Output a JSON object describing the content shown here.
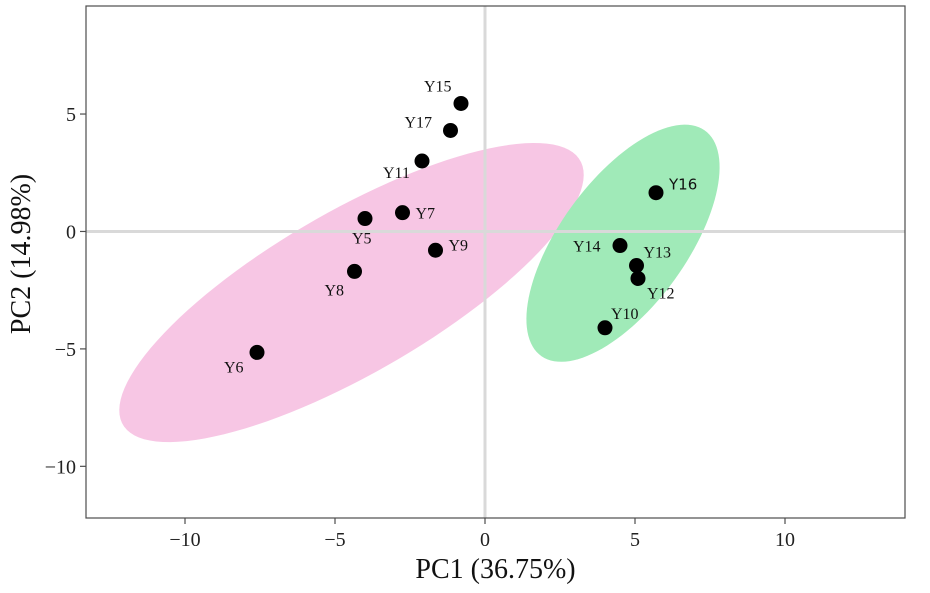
{
  "chart_data": {
    "type": "scatter",
    "title": "",
    "xlabel": "PC1 (36.75%)",
    "ylabel": "PC2 (14.98%)",
    "xlim": [
      -13.3,
      14
    ],
    "ylim": [
      -12.2,
      9.6
    ],
    "xticks": [
      -10,
      -5,
      0,
      5,
      10
    ],
    "xtick_labels": [
      "−10",
      "−5",
      "0",
      "5",
      "10"
    ],
    "yticks": [
      -10,
      -5,
      0,
      5
    ],
    "ytick_labels": [
      "−10",
      "−5",
      "0",
      "5"
    ],
    "zero_lines": true,
    "points": [
      {
        "label": "Y15",
        "x": -0.8,
        "y": 5.45,
        "group": "cluster-1"
      },
      {
        "label": "Y17",
        "x": -1.15,
        "y": 4.3,
        "group": "cluster-1"
      },
      {
        "label": "Y11",
        "x": -2.1,
        "y": 3.0,
        "group": "cluster-1"
      },
      {
        "label": "Y5",
        "x": -4.0,
        "y": 0.55,
        "group": "cluster-1"
      },
      {
        "label": "Y7",
        "x": -2.75,
        "y": 0.8,
        "group": "cluster-1"
      },
      {
        "label": "Y9",
        "x": -1.65,
        "y": -0.8,
        "group": "cluster-1"
      },
      {
        "label": "Y8",
        "x": -4.35,
        "y": -1.7,
        "group": "cluster-1"
      },
      {
        "label": "Y6",
        "x": -7.6,
        "y": -5.15,
        "group": "cluster-1"
      },
      {
        "label": "Y16",
        "x": 5.7,
        "y": 1.65,
        "group": "cluster-2"
      },
      {
        "label": "Y14",
        "x": 4.5,
        "y": -0.6,
        "group": "cluster-2"
      },
      {
        "label": "Y13",
        "x": 5.05,
        "y": -1.45,
        "group": "cluster-2"
      },
      {
        "label": "Y12",
        "x": 5.1,
        "y": -2.0,
        "group": "cluster-2"
      },
      {
        "label": "Y10",
        "x": 4.0,
        "y": -4.1,
        "group": "cluster-2"
      }
    ],
    "ellipses": [
      {
        "group": "cluster-1",
        "center": [
          -4.45,
          -2.6
        ],
        "semi_axes": [
          9.5,
          3.2
        ],
        "angle_deg": 38,
        "color": "#f7c6e4"
      },
      {
        "group": "cluster-2",
        "center": [
          4.6,
          -0.5
        ],
        "semi_axes": [
          5.55,
          2.25
        ],
        "angle_deg": 63,
        "color": "#a0eab8"
      }
    ],
    "marker_color": "#000000",
    "frame_color": "#4d4d4d",
    "zero_line_color": "#d9d9d9"
  }
}
